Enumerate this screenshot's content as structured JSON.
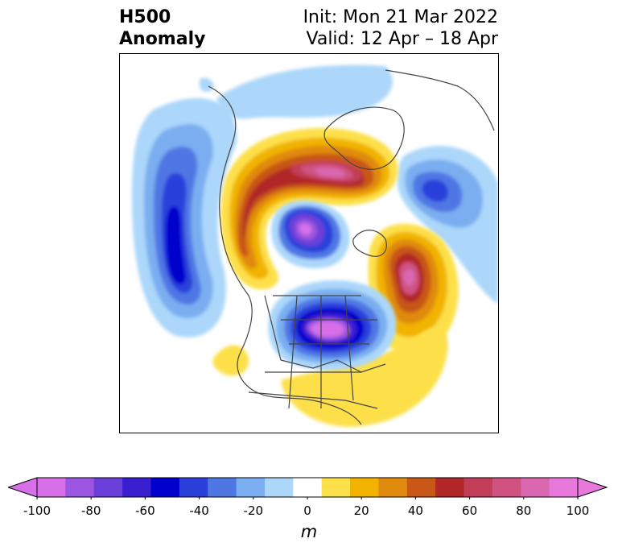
{
  "header": {
    "title_line1": "H500",
    "title_line2": "Anomaly",
    "init": "Init: Mon 21 Mar 2022",
    "valid": "Valid: 12 Apr – 18 Apr"
  },
  "colorbar": {
    "unit": "m",
    "ticks": [
      "-100",
      "-80",
      "-60",
      "-40",
      "-20",
      "0",
      "20",
      "40",
      "60",
      "80",
      "100"
    ],
    "levels": [
      -100,
      -90,
      -80,
      -70,
      -60,
      -50,
      -40,
      -30,
      -20,
      -10,
      10,
      20,
      30,
      40,
      50,
      60,
      70,
      80,
      90,
      100
    ],
    "colors": [
      "#d770e8",
      "#9b55e0",
      "#6a3fd9",
      "#3a1fd0",
      "#0000cd",
      "#2b3fdb",
      "#4f77e4",
      "#7aaef0",
      "#acd7fa",
      "#ffffff",
      "#fde04a",
      "#f1b300",
      "#e08a0e",
      "#c85718",
      "#b12626",
      "#c23d57",
      "#cf5281",
      "#d968b0",
      "#e878dc"
    ],
    "extend_low_color": "#d770e8",
    "extend_high_color": "#e878dc"
  }
}
